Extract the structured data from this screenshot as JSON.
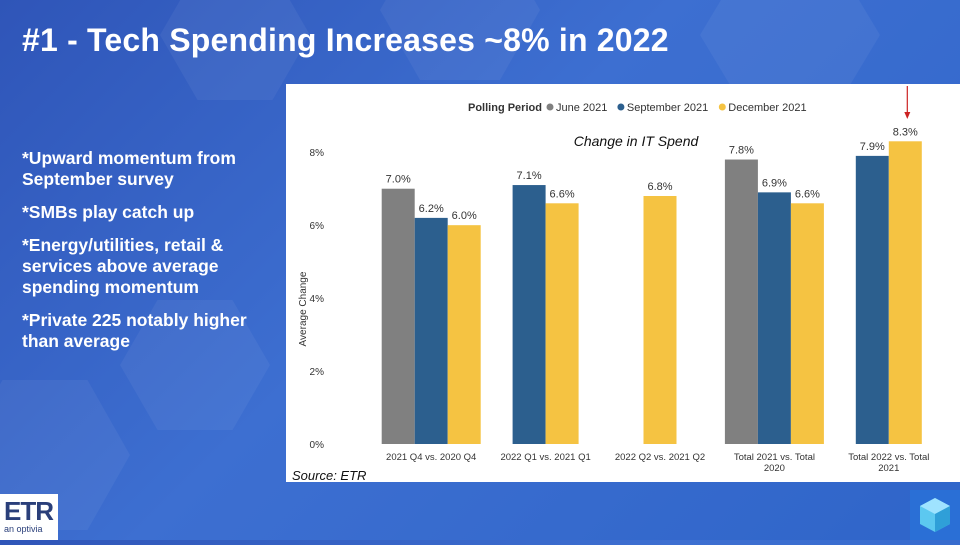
{
  "title": "#1 - Tech Spending Increases ~8% in 2022",
  "bullets": [
    "*Upward momentum from\nSeptember survey",
    "*SMBs play catch up",
    "*Energy/utilities, retail &\nservices above average\nspending momentum",
    "*Private 225 notably higher\nthan average"
  ],
  "source": "Source: ETR",
  "logo": {
    "text": "ETR",
    "subtext": "an optivia"
  },
  "colors": {
    "june": "#808080",
    "september": "#2c5f8e",
    "december": "#f5c342",
    "accent_arrow": "#cc2222"
  },
  "chart_data": {
    "type": "bar",
    "title": "Change in IT Spend",
    "legend_title": "Polling Period",
    "legend_position": "top",
    "ylabel": "Average Change",
    "xlabel": "",
    "ylim": [
      0,
      8.5
    ],
    "yticks": [
      0,
      2,
      4,
      6,
      8
    ],
    "ytick_labels": [
      "0%",
      "2%",
      "4%",
      "6%",
      "8%"
    ],
    "grid": false,
    "categories": [
      "2021 Q4 vs. 2020 Q4",
      "2022 Q1 vs. 2021 Q1",
      "2022 Q2 vs. 2021 Q2",
      "Total 2021 vs. Total\n2020",
      "Total 2022 vs. Total\n2021"
    ],
    "series": [
      {
        "name": "June 2021",
        "color": "#808080",
        "values": [
          7.0,
          null,
          null,
          7.8,
          null
        ]
      },
      {
        "name": "September 2021",
        "color": "#2c5f8e",
        "values": [
          6.2,
          7.1,
          null,
          6.9,
          7.9
        ]
      },
      {
        "name": "December 2021",
        "color": "#f5c342",
        "values": [
          6.0,
          6.6,
          6.8,
          6.6,
          8.3
        ]
      }
    ]
  }
}
